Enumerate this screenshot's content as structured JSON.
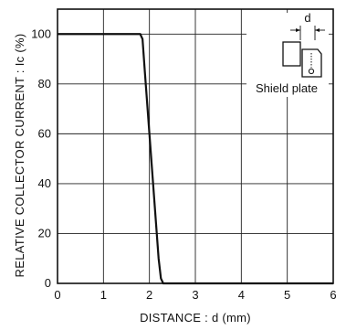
{
  "chart_data": {
    "type": "line",
    "xlabel": "DISTANCE : d  (mm)",
    "ylabel": "RELATIVE COLLECTOR CURRENT : Ic  (%)",
    "xlim": [
      0,
      6
    ],
    "ylim": [
      0,
      110
    ],
    "x_ticks": [
      "0",
      "1",
      "2",
      "3",
      "4",
      "5",
      "6"
    ],
    "y_ticks": [
      "0",
      "20",
      "40",
      "60",
      "80",
      "100"
    ],
    "grid": true,
    "series": [
      {
        "x": [
          0,
          1.8,
          1.85,
          1.9,
          2.0,
          2.1,
          2.2,
          2.25,
          2.3,
          6.0
        ],
        "y": [
          100,
          100,
          98,
          85,
          60,
          35,
          10,
          2,
          0,
          0
        ]
      }
    ],
    "inset": {
      "dimension_label": "d",
      "caption": "Shield plate"
    }
  }
}
